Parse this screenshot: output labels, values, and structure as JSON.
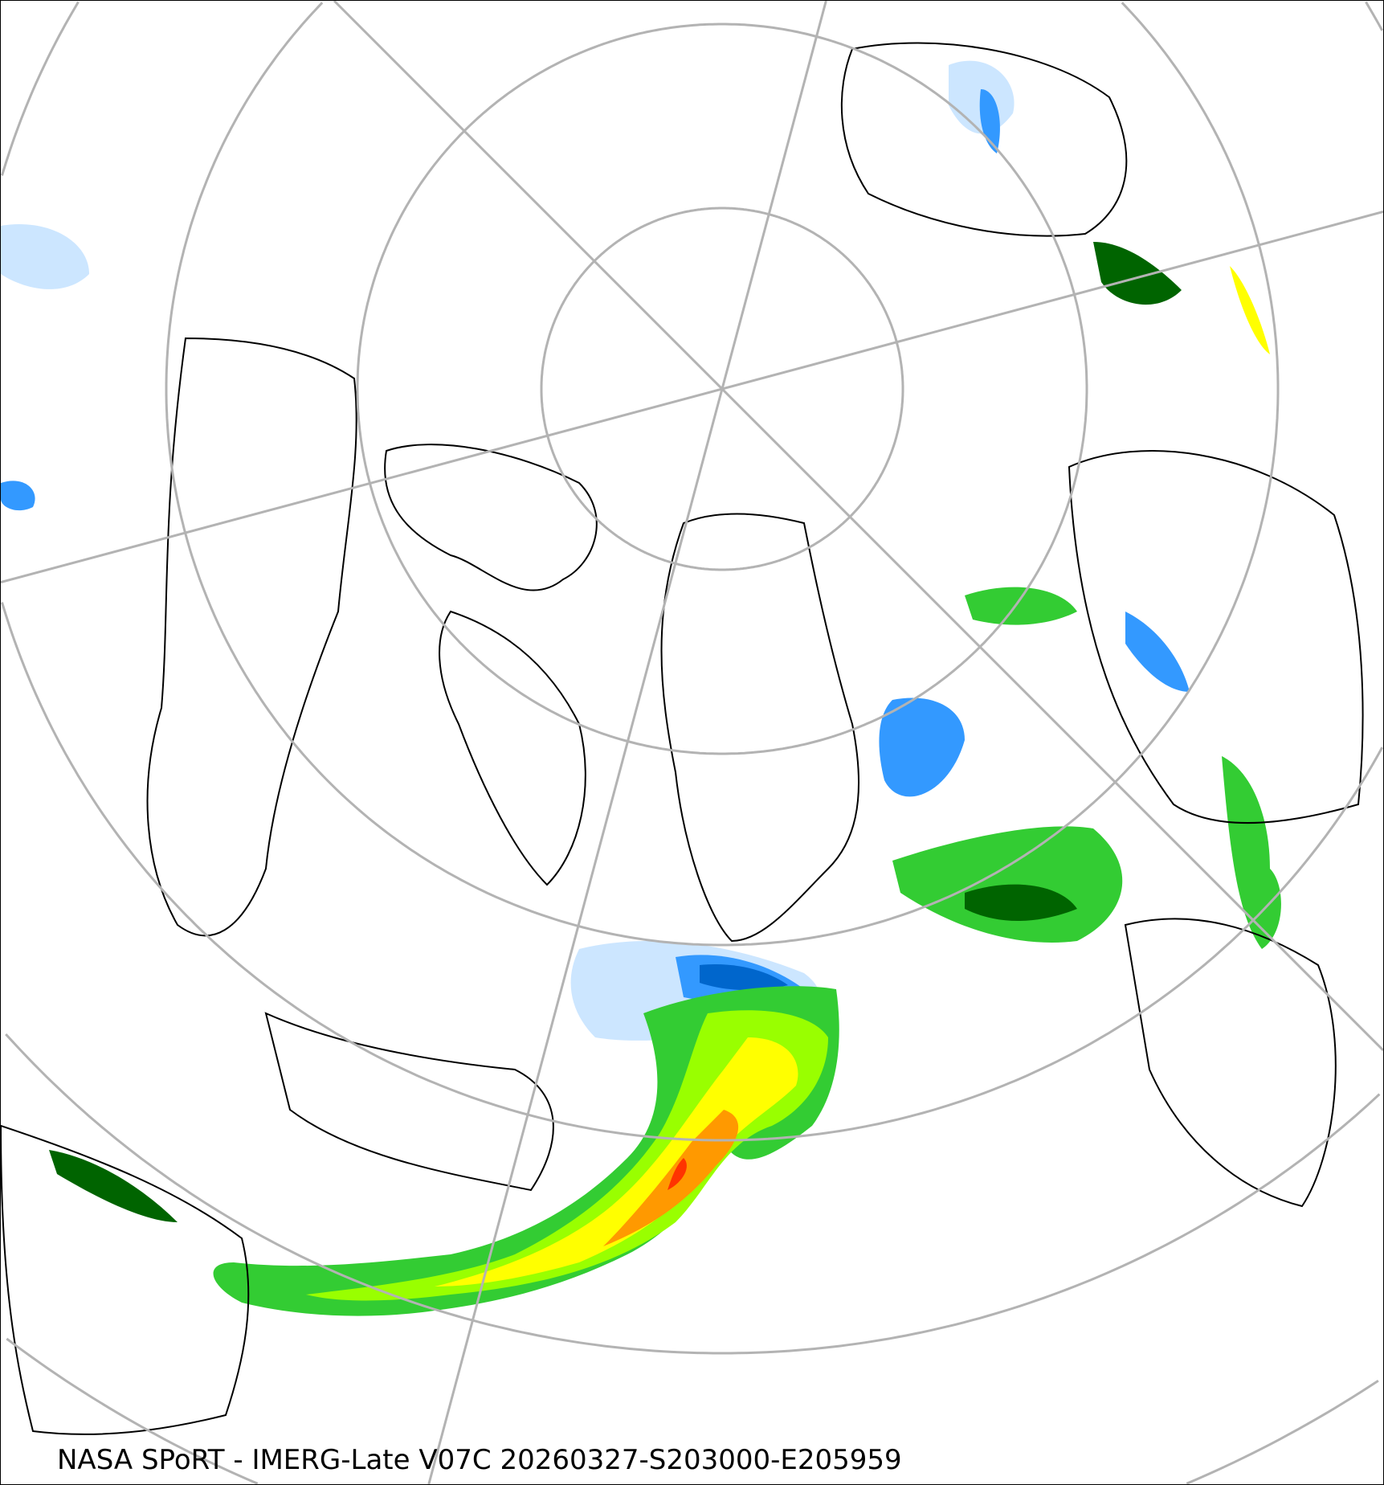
{
  "caption": "NASA SPoRT - IMERG-Late V07C 20260327-S203000-E205959",
  "colors": {
    "graticule": "#b3b3b3",
    "coastline": "#000000",
    "precip_light_blue": "#cce6ff",
    "precip_blue": "#3399ff",
    "precip_dark_blue": "#0066cc",
    "precip_dark_green": "#006400",
    "precip_green": "#33cc33",
    "precip_lime": "#99ff00",
    "precip_yellow": "#ffff00",
    "precip_orange": "#ff9900",
    "precip_red": "#ff3300"
  }
}
